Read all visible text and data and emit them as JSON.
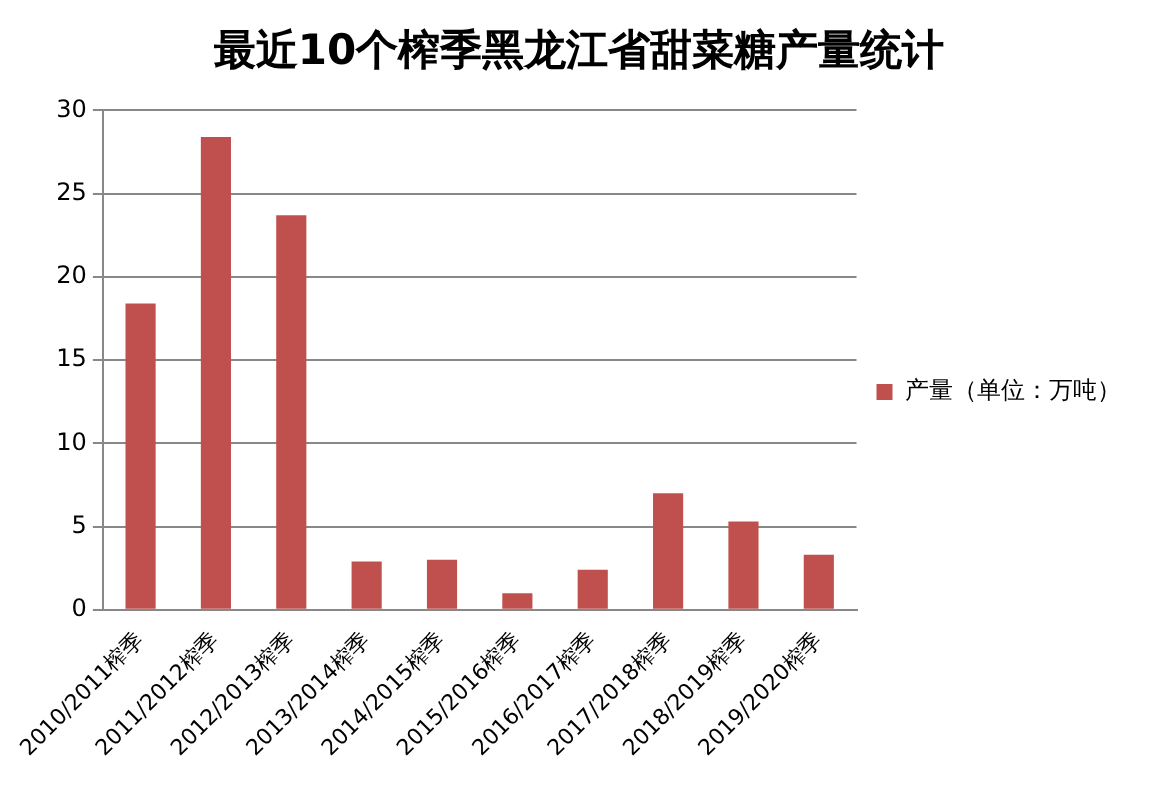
{
  "chart_data": {
    "type": "bar",
    "title": "最近10个榨季黑龙江省甜菜糖产量统计",
    "categories": [
      "2010/2011榨季",
      "2011/2012榨季",
      "2012/2013榨季",
      "2013/2014榨季",
      "2014/2015榨季",
      "2015/2016榨季",
      "2016/2017榨季",
      "2017/2018榨季",
      "2018/2019榨季",
      "2019/2020榨季"
    ],
    "series": [
      {
        "name": "产量（单位：万吨）",
        "color": "#c0504d",
        "values": [
          18.4,
          28.4,
          23.7,
          2.9,
          3.0,
          1.0,
          2.4,
          7.0,
          5.3,
          3.3
        ]
      }
    ],
    "ylim": [
      0,
      30
    ],
    "yticks": [
      0,
      5,
      10,
      15,
      20,
      25,
      30
    ],
    "grid": "y",
    "legend": "right"
  }
}
